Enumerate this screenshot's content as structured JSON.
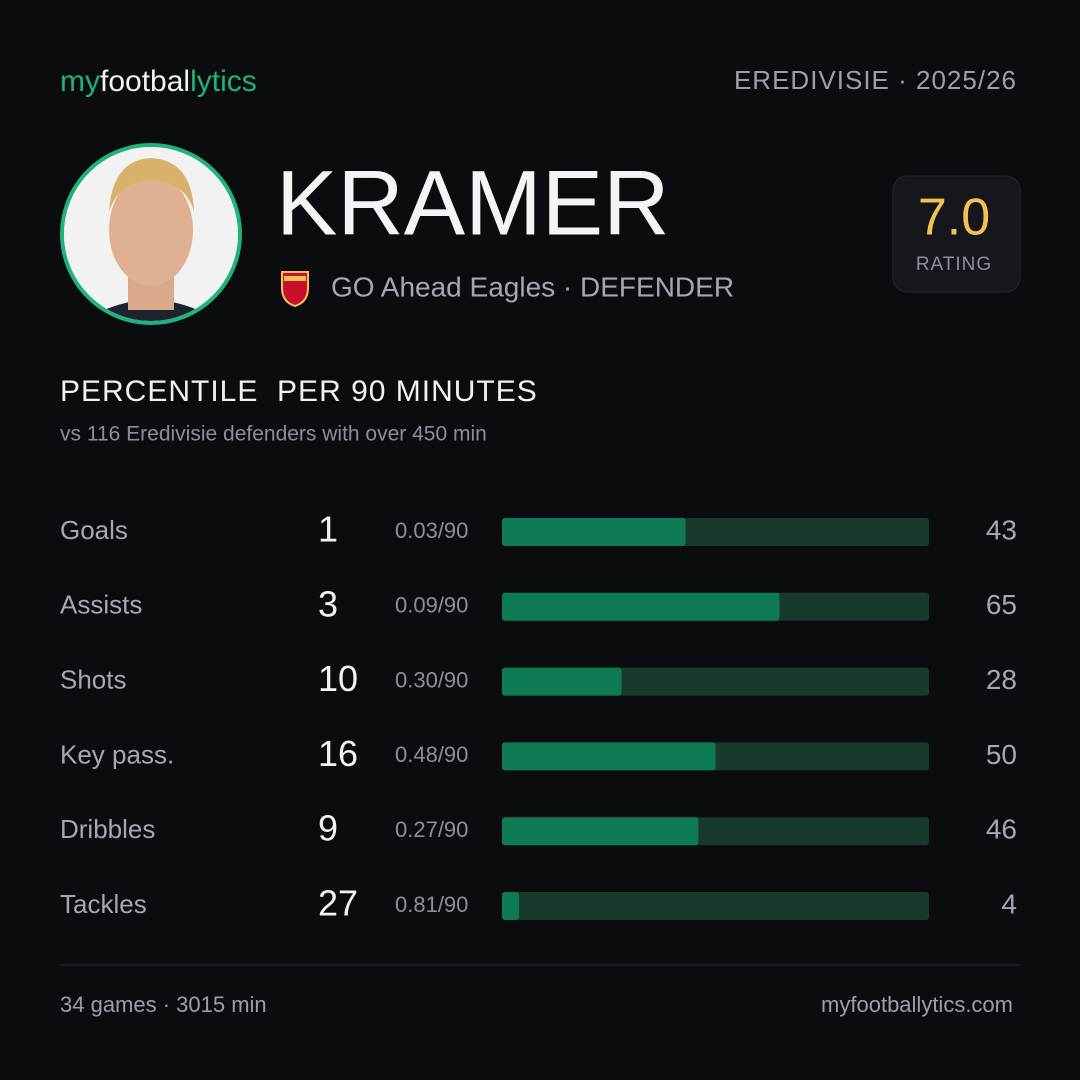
{
  "header": {
    "logo": [
      "my",
      "footbal",
      "lytics"
    ],
    "league": "EREDIVISIE · 2025/26"
  },
  "player": {
    "name": "KRAMER",
    "team_line": "GO Ahead Eagles · DEFENDER",
    "rating": "7.0",
    "rating_label": "RATING"
  },
  "section": {
    "title": "PERCENTILE  PER 90 MINUTES",
    "subtitle": "vs 116 Eredivisie defenders with over 450 min"
  },
  "stats": {
    "xlim": [
      0,
      100
    ],
    "rows": [
      {
        "label": "Goals",
        "total": 1,
        "per90": "0.03/90",
        "percentile": 43
      },
      {
        "label": "Assists",
        "total": 3,
        "per90": "0.09/90",
        "percentile": 65
      },
      {
        "label": "Shots",
        "total": 10,
        "per90": "0.30/90",
        "percentile": 28
      },
      {
        "label": "Key pass.",
        "total": 16,
        "per90": "0.48/90",
        "percentile": 50
      },
      {
        "label": "Dribbles",
        "total": 9,
        "per90": "0.27/90",
        "percentile": 46
      },
      {
        "label": "Tackles",
        "total": 27,
        "per90": "0.81/90",
        "percentile": 4
      }
    ]
  },
  "footer": {
    "summary": "34 games · 3015 min",
    "site": "myfootballytics.com"
  }
}
